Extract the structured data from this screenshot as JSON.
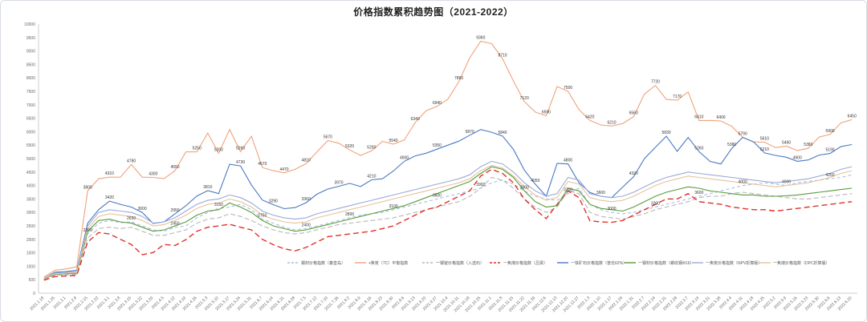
{
  "chart_data": {
    "type": "line",
    "title": "价格指数累积趋势图（2021-2022）",
    "ylim": [
      0,
      10000
    ],
    "ytick_step": 500,
    "grid": false,
    "legend_position": "bottom",
    "x": [
      "2021.1.18",
      "2021.1.25",
      "2021.2.1",
      "2021.2.8",
      "2021.2.15",
      "2021.2.22",
      "2021.3.1",
      "2021.3.8",
      "2021.3.15",
      "2021.3.22",
      "2021.3.29",
      "2021.4.5",
      "2021.4.12",
      "2021.4.19",
      "2021.4.26",
      "2021.5.3",
      "2021.5.10",
      "2021.5.17",
      "2021.5.24",
      "2021.5.31",
      "2021.6.7",
      "2021.6.14",
      "2021.6.21",
      "2021.6.28",
      "2021.7.5",
      "2021.7.12",
      "2021.7.19",
      "2021.7.26",
      "2021.8.2",
      "2021.8.9",
      "2021.8.16",
      "2021.8.23",
      "2021.8.30",
      "2021.9.6",
      "2021.9.13",
      "2021.9.20",
      "2021.9.27",
      "2021.10.4",
      "2021.10.11",
      "2021.10.18",
      "2021.10.25",
      "2021.11.1",
      "2021.11.8",
      "2021.11.15",
      "2021.11.22",
      "2021.11.29",
      "2021.12.6",
      "2021.12.13",
      "2021.12.20",
      "2021.12.27",
      "2022.1.3",
      "2022.1.10",
      "2022.1.17",
      "2022.1.24",
      "2022.1.31",
      "2022.2.7",
      "2022.2.14",
      "2022.2.21",
      "2022.2.28",
      "2022.3.7",
      "2022.3.14",
      "2022.3.21",
      "2022.3.28",
      "2022.4.4",
      "2022.4.11",
      "2022.4.18",
      "2022.4.25",
      "2022.5.2",
      "2022.5.9",
      "2022.5.16",
      "2022.5.23",
      "2022.5.30",
      "2022.6.6",
      "2022.6.13",
      "2022.6.20"
    ],
    "series": [
      {
        "name": "钢材价格指数（秦皇岛）",
        "color": "#a8bfe0",
        "dash": "4,3",
        "label_every": 4,
        "values": [
          520,
          700,
          720,
          760,
          2200,
          2600,
          2700,
          2620,
          2650,
          2500,
          2350,
          2300,
          2450,
          2500,
          2800,
          3000,
          3150,
          3200,
          3300,
          3100,
          2750,
          2600,
          2450,
          2350,
          2400,
          2500,
          2600,
          2700,
          2800,
          2900,
          2950,
          3000,
          3100,
          3200,
          3300,
          3400,
          3500,
          3600,
          3700,
          3800,
          3900,
          4100,
          4200,
          4050,
          3800,
          3600,
          3500,
          3450,
          3700,
          3900,
          3300,
          3100,
          3000,
          2950,
          3000,
          3100,
          3200,
          3300,
          3400,
          3500,
          3600,
          3700,
          3800,
          3900,
          4000,
          4050,
          4100,
          4050,
          4000,
          4100,
          4150,
          4200,
          4250,
          4300,
          4400
        ]
      },
      {
        "name": "+焦炭（7C）平衡指数",
        "color": "#f0a27a",
        "dash": "",
        "label_every": 2,
        "values": [
          600,
          850,
          900,
          980,
          3800,
          4250,
          4310,
          4310,
          4780,
          4310,
          4300,
          4260,
          4550,
          5250,
          5250,
          5950,
          5200,
          6080,
          5260,
          5830,
          4670,
          4550,
          4470,
          4600,
          4810,
          5250,
          5670,
          5570,
          5320,
          5120,
          5290,
          5640,
          5540,
          5690,
          6340,
          6780,
          6940,
          7210,
          7860,
          8750,
          9360,
          9270,
          8710,
          7880,
          7120,
          6730,
          6590,
          7680,
          7500,
          6820,
          6420,
          6250,
          6210,
          6300,
          6560,
          7400,
          7720,
          7200,
          7170,
          7480,
          6410,
          6420,
          6400,
          6200,
          5790,
          5620,
          5610,
          5410,
          5460,
          5300,
          5380,
          5800,
          5900,
          6330,
          6450
        ]
      },
      {
        "name": "一钢锭价格指数（入选石）",
        "color": "#b8b8b8",
        "dash": "6,3",
        "label_every": 0,
        "values": [
          500,
          660,
          680,
          700,
          2050,
          2400,
          2450,
          2400,
          2450,
          2300,
          2150,
          2150,
          2250,
          2350,
          2600,
          2750,
          2800,
          2950,
          2850,
          2700,
          2500,
          2350,
          2250,
          2200,
          2250,
          2350,
          2450,
          2550,
          2600,
          2650,
          2700,
          2750,
          2800,
          2900,
          3000,
          3100,
          3200,
          3300,
          3400,
          3600,
          3900,
          4300,
          4200,
          3900,
          3500,
          3200,
          3000,
          3200,
          3800,
          3700,
          3000,
          2850,
          2800,
          2750,
          2850,
          2950,
          3100,
          3200,
          3300,
          3400,
          3550,
          3600,
          3600,
          3700,
          3750,
          3700,
          3650,
          3600,
          3550,
          3500,
          3500,
          3550,
          3600,
          3650,
          3700
        ]
      },
      {
        "name": "一焦煤价格指数（吕梁）",
        "color": "#e0312a",
        "dash": "7,4",
        "label_every": 0,
        "values": [
          480,
          620,
          640,
          660,
          1900,
          2250,
          2200,
          2000,
          1810,
          1430,
          1510,
          1810,
          1770,
          1990,
          2300,
          2450,
          2500,
          2560,
          2450,
          2350,
          2000,
          1800,
          1650,
          1570,
          1700,
          1900,
          2100,
          2150,
          2200,
          2250,
          2300,
          2400,
          2500,
          2700,
          2900,
          3100,
          3200,
          3400,
          3600,
          3800,
          4350,
          4600,
          4450,
          4100,
          3500,
          3100,
          2770,
          3300,
          3800,
          3550,
          2690,
          2650,
          2630,
          2700,
          2900,
          3100,
          3300,
          3500,
          3500,
          3700,
          3400,
          3350,
          3300,
          3200,
          3150,
          3100,
          3100,
          3050,
          3100,
          3150,
          3200,
          3250,
          3300,
          3350,
          3400
        ]
      },
      {
        "name": "一铁矿石价格指数（普氏62%）",
        "color": "#4a78c4",
        "dash": "",
        "label_every": 3,
        "values": [
          550,
          780,
          800,
          850,
          2600,
          3100,
          3420,
          3300,
          3200,
          3000,
          2590,
          2650,
          2950,
          3250,
          3610,
          3810,
          3700,
          4790,
          4730,
          4020,
          3460,
          3290,
          3140,
          3180,
          3360,
          3680,
          3870,
          3970,
          4080,
          3960,
          4210,
          4250,
          4540,
          4900,
          5100,
          5200,
          5350,
          5500,
          5650,
          5870,
          6080,
          5980,
          5840,
          5340,
          4570,
          4050,
          3600,
          4820,
          4800,
          4100,
          3740,
          3600,
          3550,
          3940,
          4320,
          5000,
          5420,
          5830,
          5270,
          5790,
          5260,
          4900,
          4800,
          5380,
          5790,
          5620,
          5210,
          5120,
          5050,
          4900,
          4950,
          5130,
          5190,
          5450,
          5520
        ]
      },
      {
        "name": "一钢材价格指数（螺纹钢Φ16）",
        "color": "#5a9a3a",
        "dash": "",
        "label_every": 0,
        "values": [
          530,
          700,
          720,
          740,
          2300,
          2700,
          2750,
          2650,
          2600,
          2450,
          2300,
          2350,
          2500,
          2650,
          2900,
          3050,
          3100,
          3350,
          3200,
          3000,
          2700,
          2500,
          2400,
          2300,
          2350,
          2450,
          2550,
          2650,
          2750,
          2850,
          2950,
          3050,
          3150,
          3250,
          3400,
          3550,
          3700,
          3850,
          4000,
          4150,
          4450,
          4700,
          4600,
          4300,
          3800,
          3400,
          3200,
          3250,
          3900,
          3800,
          3300,
          3150,
          3100,
          3050,
          3200,
          3400,
          3600,
          3750,
          3850,
          3950,
          3900,
          3800,
          3750,
          3700,
          3650,
          3650,
          3600,
          3600,
          3620,
          3650,
          3700,
          3750,
          3800,
          3850,
          3900
        ]
      },
      {
        "name": "一焦炭价格指数（NPV折算版）",
        "color": "#9aaad8",
        "dash": "",
        "label_every": 0,
        "values": [
          560,
          750,
          770,
          800,
          2500,
          3000,
          3100,
          3050,
          3000,
          2850,
          2600,
          2650,
          2800,
          3050,
          3300,
          3450,
          3500,
          3650,
          3550,
          3350,
          3050,
          2900,
          2800,
          2750,
          2800,
          2950,
          3050,
          3150,
          3250,
          3350,
          3450,
          3550,
          3650,
          3750,
          3850,
          3950,
          4050,
          4150,
          4250,
          4400,
          4700,
          4900,
          4800,
          4500,
          4100,
          3800,
          3600,
          3700,
          4300,
          4200,
          3700,
          3600,
          3550,
          3600,
          3750,
          3950,
          4150,
          4300,
          4400,
          4500,
          4450,
          4400,
          4350,
          4300,
          4250,
          4200,
          4150,
          4100,
          4150,
          4200,
          4250,
          4350,
          4450,
          4600,
          4700
        ]
      },
      {
        "name": "一焦煤价格指数（DPC折算版）",
        "color": "#e6c39a",
        "dash": "",
        "label_every": 0,
        "values": [
          540,
          720,
          740,
          770,
          2400,
          2850,
          2950,
          2900,
          2850,
          2700,
          2500,
          2550,
          2700,
          2900,
          3150,
          3300,
          3350,
          3500,
          3400,
          3200,
          2900,
          2750,
          2650,
          2600,
          2650,
          2800,
          2900,
          3000,
          3100,
          3200,
          3300,
          3400,
          3500,
          3600,
          3700,
          3800,
          3900,
          4000,
          4100,
          4250,
          4550,
          4750,
          4650,
          4350,
          3950,
          3650,
          3450,
          3550,
          4150,
          4050,
          3550,
          3450,
          3400,
          3450,
          3600,
          3800,
          4000,
          4150,
          4250,
          4350,
          4300,
          4250,
          4200,
          4150,
          4100,
          4050,
          4000,
          3950,
          4000,
          4050,
          4100,
          4200,
          4300,
          4450,
          4550
        ]
      }
    ]
  }
}
